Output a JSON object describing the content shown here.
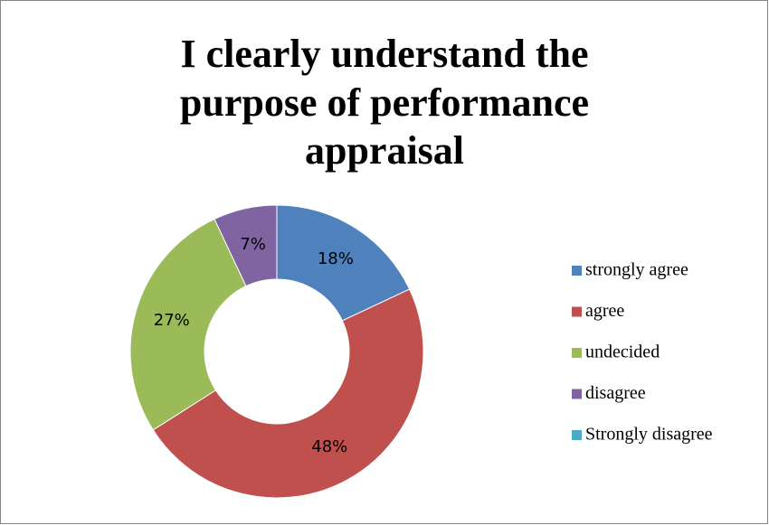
{
  "chart_data": {
    "type": "donut",
    "title": [
      "I clearly understand the",
      "purpose of performance",
      "appraisal"
    ],
    "categories": [
      "strongly agree",
      "agree",
      "undecided",
      "disagree",
      "Strongly disagree"
    ],
    "values": [
      18,
      48,
      27,
      7,
      0
    ],
    "value_labels": [
      "18%",
      "48%",
      "27%",
      "7%",
      null
    ],
    "colors": [
      "#4f81bd",
      "#c0504d",
      "#9bbb59",
      "#8064a2",
      "#4bacc6"
    ],
    "legend": "right"
  }
}
